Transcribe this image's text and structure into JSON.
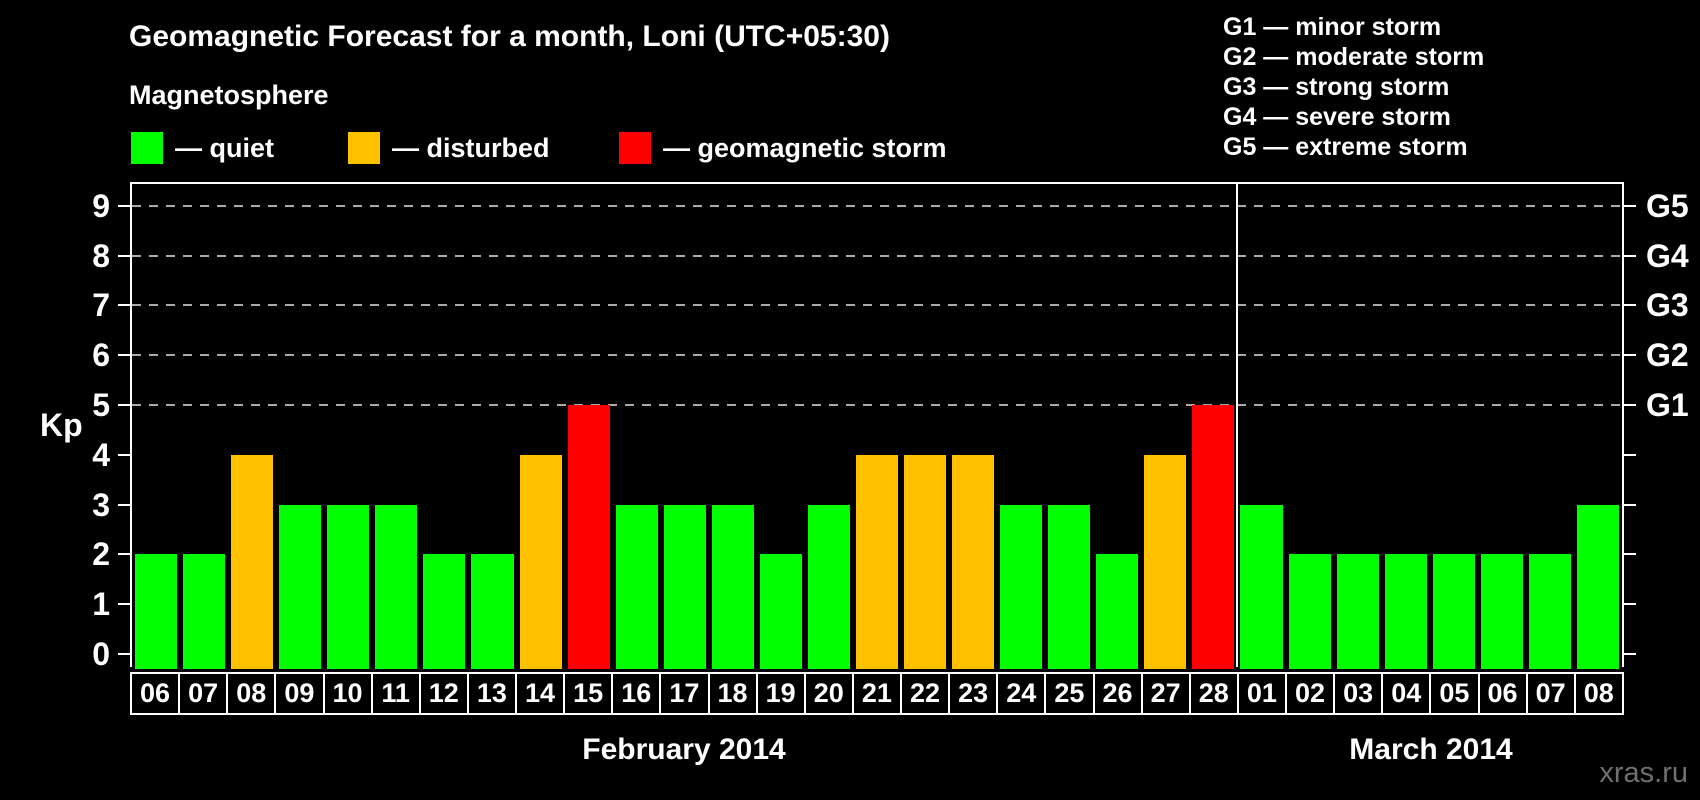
{
  "header": {
    "title": "Geomagnetic Forecast for a month, Loni (UTC+05:30)"
  },
  "magnetosphere_legend": {
    "title": "Magnetosphere",
    "items": [
      {
        "label": "— quiet",
        "key": "quiet",
        "color": "#00ff00"
      },
      {
        "label": "— disturbed",
        "key": "disturbed",
        "color": "#ffc000"
      },
      {
        "label": "— geomagnetic storm",
        "key": "storm",
        "color": "#ff0000"
      }
    ]
  },
  "storm_scale_legend": {
    "items": [
      "G1 — minor storm",
      "G2 — moderate storm",
      "G3 — strong storm",
      "G4 — severe storm",
      "G5 — extreme storm"
    ]
  },
  "axes": {
    "y_title": "Kp",
    "y_ticks": [
      0,
      1,
      2,
      3,
      4,
      5,
      6,
      7,
      8,
      9
    ],
    "right_labels": [
      {
        "label": "G1",
        "kp": 5
      },
      {
        "label": "G2",
        "kp": 6
      },
      {
        "label": "G3",
        "kp": 7
      },
      {
        "label": "G4",
        "kp": 8
      },
      {
        "label": "G5",
        "kp": 9
      }
    ]
  },
  "footer": {
    "watermark": "xras.ru"
  },
  "chart_data": {
    "type": "bar",
    "title": "Geomagnetic Forecast for a month, Loni (UTC+05:30)",
    "xlabel": "",
    "ylabel": "Kp",
    "ylim": [
      0,
      9
    ],
    "grid": "dashed horizontal at Kp 5-9 only",
    "gridlines_at": [
      5,
      6,
      7,
      8,
      9
    ],
    "legend_position": "top",
    "months": [
      {
        "label": "February 2014",
        "days": 23
      },
      {
        "label": "March 2014",
        "days": 8
      }
    ],
    "categories": [
      "06",
      "07",
      "08",
      "09",
      "10",
      "11",
      "12",
      "13",
      "14",
      "15",
      "16",
      "17",
      "18",
      "19",
      "20",
      "21",
      "22",
      "23",
      "24",
      "25",
      "26",
      "27",
      "28",
      "01",
      "02",
      "03",
      "04",
      "05",
      "06",
      "07",
      "08"
    ],
    "values": [
      2,
      2,
      4,
      3,
      3,
      3,
      2,
      2,
      4,
      5,
      3,
      3,
      3,
      2,
      3,
      4,
      4,
      4,
      3,
      3,
      2,
      4,
      5,
      3,
      2,
      2,
      2,
      2,
      2,
      2,
      3
    ],
    "levels": [
      "quiet",
      "quiet",
      "disturbed",
      "quiet",
      "quiet",
      "quiet",
      "quiet",
      "quiet",
      "disturbed",
      "storm",
      "quiet",
      "quiet",
      "quiet",
      "quiet",
      "quiet",
      "disturbed",
      "disturbed",
      "disturbed",
      "quiet",
      "quiet",
      "quiet",
      "disturbed",
      "storm",
      "quiet",
      "quiet",
      "quiet",
      "quiet",
      "quiet",
      "quiet",
      "quiet",
      "quiet"
    ],
    "colors": {
      "quiet": "#00ff00",
      "disturbed": "#ffc000",
      "storm": "#ff0000"
    }
  }
}
